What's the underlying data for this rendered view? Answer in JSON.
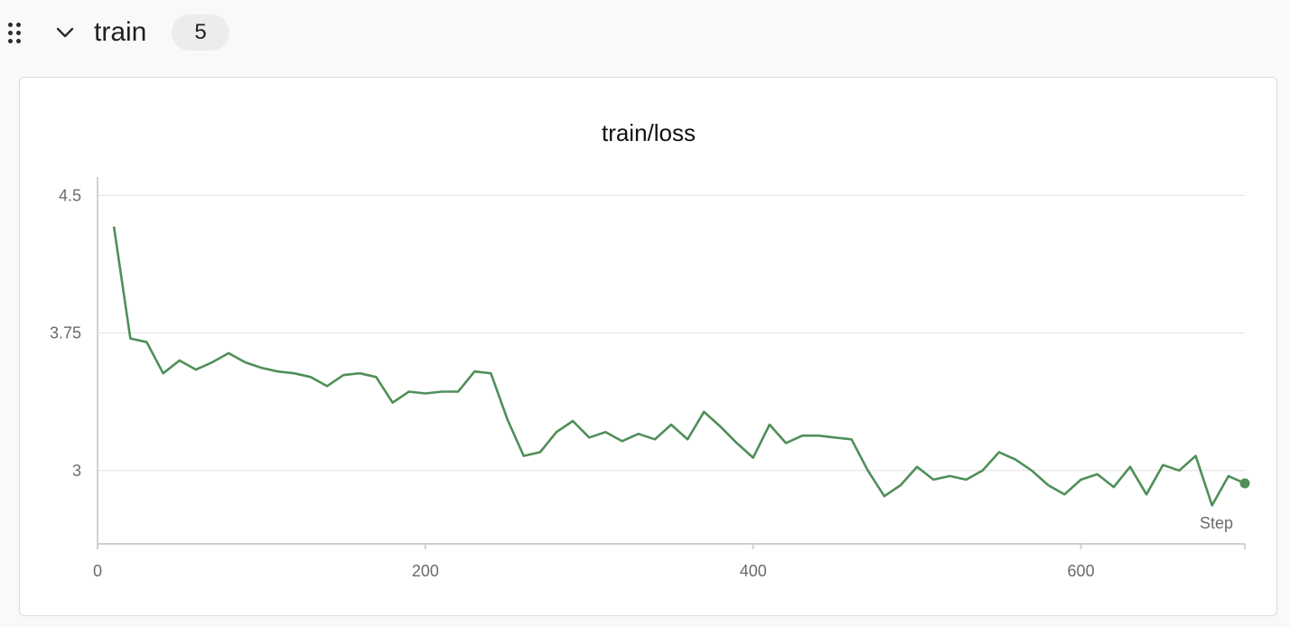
{
  "section": {
    "title": "train",
    "count": "5"
  },
  "colors": {
    "series": "#4f8f58",
    "grid": "#e8e8e8",
    "axis": "#d0d0d0"
  },
  "icons": {
    "drag": "drag-handle-icon",
    "collapse": "chevron-down-icon"
  },
  "chart_data": {
    "type": "line",
    "title": "train/loss",
    "xlabel": "Step",
    "ylabel": "",
    "xlim": [
      0,
      700
    ],
    "ylim": [
      2.6,
      4.6
    ],
    "xticks": [
      0,
      200,
      400,
      600
    ],
    "xtick_labels": [
      "0",
      "200",
      "400",
      "600"
    ],
    "yticks": [
      3,
      3.75,
      4.5
    ],
    "ytick_labels": [
      "3",
      "3.75",
      "4.5"
    ],
    "grid": true,
    "series": [
      {
        "name": "",
        "color": "#4f8f58",
        "x": [
          10,
          20,
          30,
          40,
          50,
          60,
          70,
          80,
          90,
          100,
          110,
          120,
          130,
          140,
          150,
          160,
          170,
          180,
          190,
          200,
          210,
          220,
          230,
          240,
          250,
          260,
          270,
          280,
          290,
          300,
          310,
          320,
          330,
          340,
          350,
          360,
          370,
          380,
          390,
          400,
          410,
          420,
          430,
          440,
          450,
          460,
          470,
          480,
          490,
          500,
          510,
          520,
          530,
          540,
          550,
          560,
          570,
          580,
          590,
          600,
          610,
          620,
          630,
          640,
          650,
          660,
          670,
          680,
          690,
          700
        ],
        "y": [
          4.33,
          3.72,
          3.7,
          3.53,
          3.6,
          3.55,
          3.59,
          3.64,
          3.59,
          3.56,
          3.54,
          3.53,
          3.51,
          3.46,
          3.52,
          3.53,
          3.51,
          3.37,
          3.43,
          3.42,
          3.43,
          3.43,
          3.54,
          3.53,
          3.28,
          3.08,
          3.1,
          3.21,
          3.27,
          3.18,
          3.21,
          3.16,
          3.2,
          3.17,
          3.25,
          3.17,
          3.32,
          3.24,
          3.15,
          3.07,
          3.25,
          3.15,
          3.19,
          3.19,
          3.18,
          3.17,
          3.0,
          2.86,
          2.92,
          3.02,
          2.95,
          2.97,
          2.95,
          3.0,
          3.1,
          3.06,
          3.0,
          2.92,
          2.87,
          2.95,
          2.98,
          2.91,
          3.02,
          2.87,
          3.03,
          3.0,
          3.08,
          2.81,
          2.97,
          2.93
        ]
      }
    ]
  }
}
